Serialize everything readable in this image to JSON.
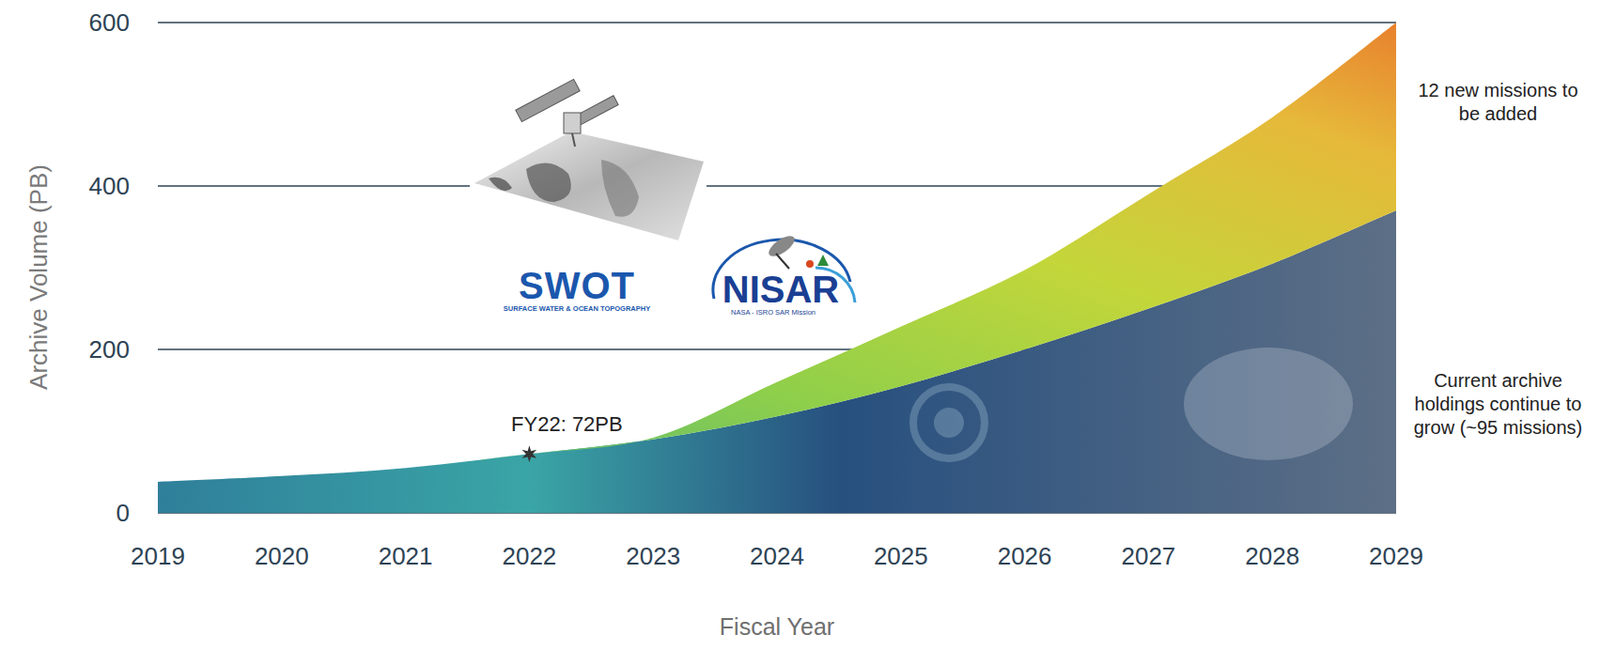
{
  "chart_data": {
    "type": "area",
    "stacked": true,
    "grid": true,
    "legend": "right",
    "x_label": "Fiscal Year",
    "y_label": "Archive Volume (PB)",
    "x": [
      2019,
      2020,
      2021,
      2022,
      2023,
      2024,
      2025,
      2026,
      2027,
      2028,
      2029
    ],
    "xlim": [
      2019,
      2029
    ],
    "xticks": [
      2019,
      2020,
      2021,
      2022,
      2023,
      2024,
      2025,
      2026,
      2027,
      2028,
      2029
    ],
    "ylim": [
      0,
      600
    ],
    "yticks": [
      0,
      200,
      400,
      600
    ],
    "series": [
      {
        "name": "Current archive holdings continue to grow (~95 missions)",
        "color": "#27507f",
        "values": [
          38,
          45,
          55,
          72,
          90,
          118,
          155,
          200,
          250,
          305,
          370
        ]
      },
      {
        "name": "12 new missions to be added",
        "color": "#c3d63a",
        "values": [
          0,
          0,
          0,
          0,
          2,
          42,
          73,
          97,
          140,
          179,
          230
        ]
      }
    ],
    "annotations": [
      {
        "text": "FY22: 72PB",
        "x": 2022,
        "y": 72,
        "marker": "star"
      }
    ],
    "logos": [
      {
        "name": "SWOT",
        "caption": "SURFACE WATER & OCEAN TOPOGRAPHY"
      },
      {
        "name": "NISAR",
        "caption": "NASA - ISRO SAR Mission"
      }
    ]
  }
}
